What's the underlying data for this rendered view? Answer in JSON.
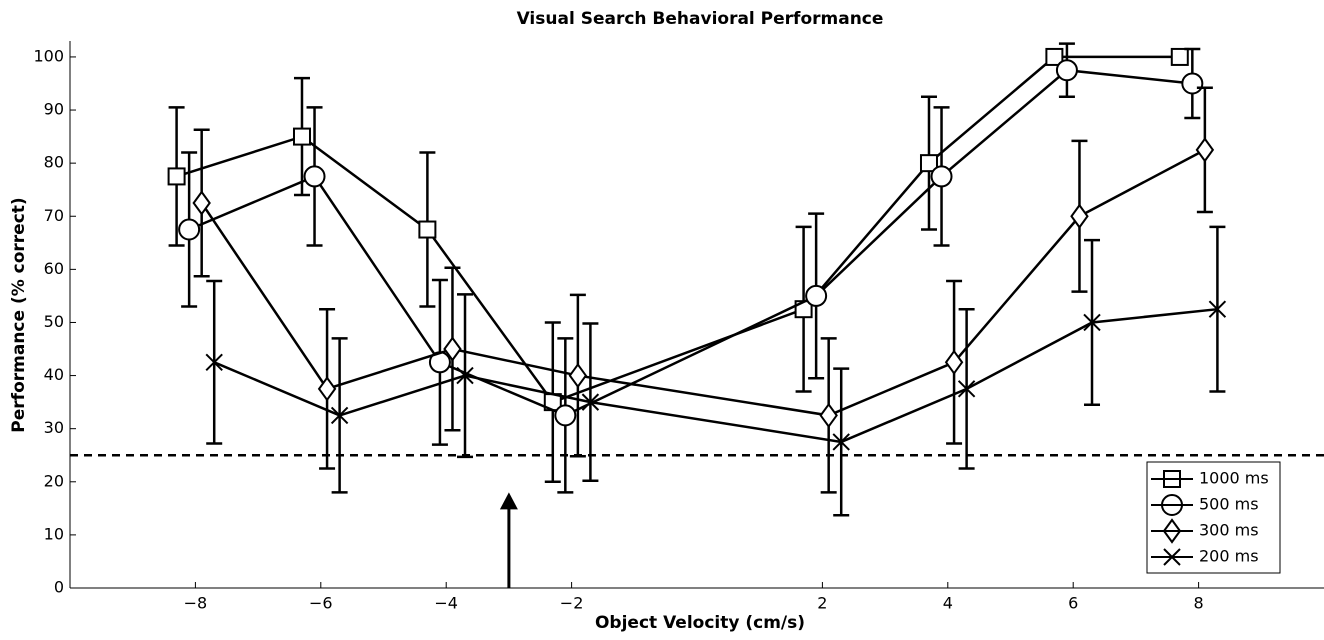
{
  "chart_data": {
    "type": "line",
    "title": "Visual Search Behavioral Performance",
    "x_label": "Object Velocity (cm/s)",
    "y_label": "Performance (% correct)",
    "xlim": [
      -10,
      10
    ],
    "ylim": [
      0,
      103
    ],
    "xticks": [
      {
        "value": -8,
        "label": "−8"
      },
      {
        "value": -6,
        "label": "−6"
      },
      {
        "value": -4,
        "label": "−4"
      },
      {
        "value": -2,
        "label": "−2"
      },
      2,
      4,
      6,
      8
    ],
    "yticks": [
      0,
      10,
      20,
      30,
      40,
      50,
      60,
      70,
      80,
      90,
      100
    ],
    "reference_line": 25,
    "arrow": {
      "x": -3,
      "y_start": 0,
      "y_end": 18
    },
    "legend": "lower right",
    "series": [
      {
        "name": "1000 ms",
        "color": "#000000",
        "marker": "square",
        "x": [
          -8.3,
          -6.3,
          -4.3,
          -2.3,
          1.7,
          3.7,
          5.7,
          7.7
        ],
        "values": [
          77.5,
          85,
          67.5,
          35,
          52.5,
          80,
          100,
          100
        ],
        "errors": [
          13,
          11,
          14.5,
          15,
          15.5,
          12.5,
          0,
          0
        ]
      },
      {
        "name": "500 ms",
        "color": "#000000",
        "marker": "circle",
        "x": [
          -8.1,
          -6.1,
          -4.1,
          -2.1,
          1.9,
          3.9,
          5.9,
          7.9
        ],
        "values": [
          67.5,
          77.5,
          42.5,
          32.5,
          55,
          77.5,
          97.5,
          95
        ],
        "errors": [
          14.5,
          13,
          15.5,
          14.5,
          15.5,
          13,
          5,
          6.5
        ]
      },
      {
        "name": "300 ms",
        "color": "#000000",
        "marker": "diamond",
        "x": [
          -7.9,
          -5.9,
          -3.9,
          -1.9,
          2.1,
          4.1,
          6.1,
          8.1
        ],
        "values": [
          72.5,
          37.5,
          45,
          40,
          32.5,
          42.5,
          70,
          82.5
        ],
        "errors": [
          13.8,
          15,
          15.3,
          15.2,
          14.5,
          15.3,
          14.2,
          11.7
        ]
      },
      {
        "name": "200 ms",
        "color": "#000000",
        "marker": "x",
        "x": [
          -7.7,
          -5.7,
          -3.7,
          -1.7,
          2.3,
          4.3,
          6.3,
          8.3
        ],
        "values": [
          42.5,
          32.5,
          40,
          35,
          27.5,
          37.5,
          50,
          52.5
        ],
        "errors": [
          15.3,
          14.5,
          15.3,
          14.8,
          13.8,
          15,
          15.5,
          15.5
        ]
      }
    ]
  }
}
